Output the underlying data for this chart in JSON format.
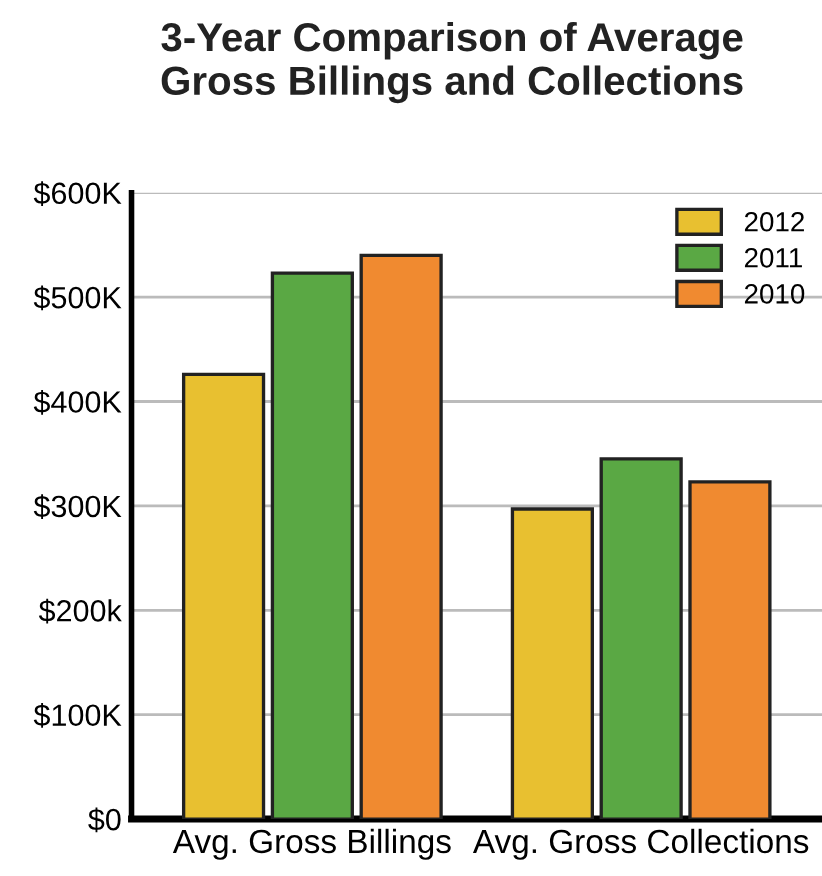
{
  "chart_data": {
    "type": "bar",
    "title": "3-Year Comparison of Average\nGross Billings and Collections",
    "categories": [
      "Avg. Gross Billings",
      "Avg. Gross Collections"
    ],
    "series": [
      {
        "name": "2012",
        "color": "#e8c030",
        "values": [
          426,
          297
        ]
      },
      {
        "name": "2011",
        "color": "#5aa844",
        "values": [
          523,
          345
        ]
      },
      {
        "name": "2010",
        "color": "#f08a30",
        "values": [
          540,
          323
        ]
      }
    ],
    "ylim": [
      0,
      600
    ],
    "yticks": [
      {
        "value": 0,
        "label": "$0"
      },
      {
        "value": 100,
        "label": "$100K"
      },
      {
        "value": 200,
        "label": "$200k"
      },
      {
        "value": 300,
        "label": "$300K"
      },
      {
        "value": 400,
        "label": "$400K"
      },
      {
        "value": 500,
        "label": "$500K"
      },
      {
        "value": 600,
        "label": "$600K"
      }
    ],
    "grid": "y",
    "legend": "top right"
  }
}
